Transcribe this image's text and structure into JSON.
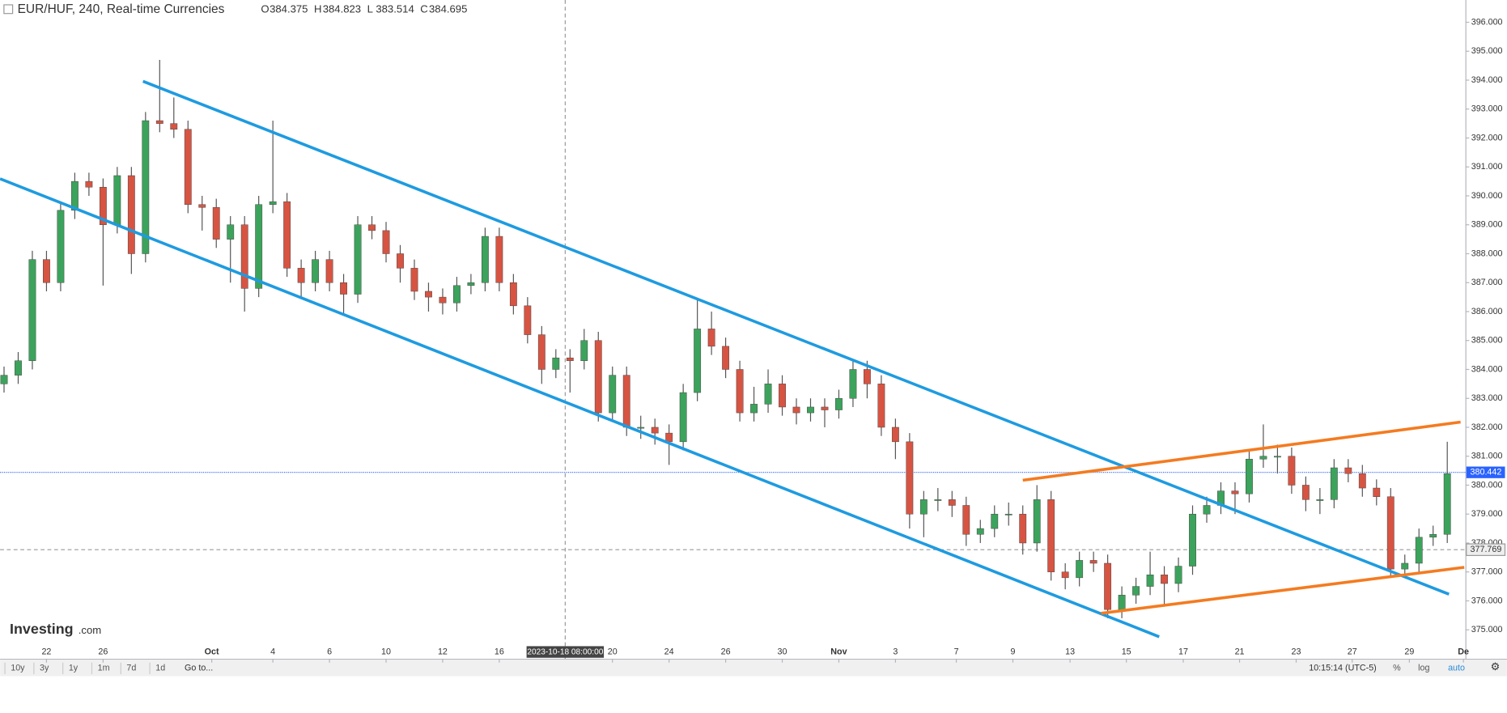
{
  "chart_data": {
    "type": "candlestick",
    "title": "EUR/HUF, 240, Real-time Currencies",
    "ohlc_header": {
      "labels": [
        "O",
        "H",
        "L",
        "C"
      ],
      "values": [
        384.375,
        384.823,
        383.514,
        384.695
      ]
    },
    "x": [
      -1.5,
      -1,
      -0.5,
      0,
      0.5,
      1,
      1.5,
      2,
      2.5,
      3,
      3.5,
      4,
      4.5,
      5,
      5.5,
      6,
      6.5,
      7,
      7.5,
      8,
      8.5,
      9,
      9.5,
      10,
      10.5,
      11,
      11.5,
      12,
      12.5,
      13,
      13.5,
      14,
      14.5,
      15,
      15.5,
      16,
      16.5,
      17,
      17.5,
      18,
      18.5,
      19,
      19.5,
      20,
      20.5,
      21,
      21.5,
      22,
      22.5,
      23,
      23.5,
      24,
      24.5,
      25,
      25.5,
      26,
      26.5,
      27,
      27.5,
      28,
      28.5,
      29,
      29.5,
      30,
      30.5,
      31,
      31.5,
      32,
      32.5,
      33,
      33.5,
      34,
      34.5,
      35,
      35.5,
      36,
      36.5,
      37,
      37.5,
      38,
      38.5,
      39,
      39.5,
      40,
      40.5,
      41,
      41.5,
      42,
      42.5,
      43,
      43.5,
      44,
      44.5,
      45,
      45.5,
      46,
      46.5,
      47,
      47.5,
      48,
      48.5,
      49,
      49.5
    ],
    "open": [
      383.5,
      383.8,
      384.3,
      387.8,
      387.0,
      389.5,
      390.5,
      390.3,
      389.0,
      390.7,
      388.0,
      392.6,
      392.5,
      392.3,
      389.7,
      389.6,
      388.5,
      389.0,
      386.8,
      389.7,
      389.8,
      387.5,
      387.0,
      387.8,
      387.0,
      386.6,
      389.0,
      388.8,
      388.0,
      387.5,
      386.7,
      386.5,
      386.3,
      386.9,
      387.0,
      388.6,
      387.0,
      386.2,
      385.2,
      384.0,
      384.4,
      384.3,
      385.0,
      382.5,
      383.8,
      382.0,
      382.0,
      381.8,
      381.5,
      383.2,
      385.4,
      384.8,
      384.0,
      382.5,
      382.8,
      383.5,
      382.7,
      382.5,
      382.7,
      382.6,
      383.0,
      384.0,
      383.5,
      382.0,
      381.5,
      379.0,
      379.5,
      379.5,
      379.3,
      378.3,
      378.5,
      379.0,
      379.0,
      378.0,
      379.5,
      377.0,
      376.8,
      377.4,
      377.3,
      375.7,
      376.2,
      376.5,
      376.9,
      376.6,
      377.2,
      379.0,
      379.3,
      379.8,
      379.7,
      380.9,
      381.0,
      381.0,
      380.0,
      379.5,
      379.5,
      380.6,
      380.4,
      379.9,
      379.6,
      377.1,
      377.3,
      378.2,
      378.3
    ],
    "high": [
      384.1,
      384.6,
      388.1,
      388.1,
      389.8,
      390.8,
      390.8,
      390.6,
      391.0,
      391.0,
      392.9,
      394.7,
      393.4,
      392.6,
      390.0,
      389.9,
      389.3,
      389.3,
      390.0,
      392.6,
      390.1,
      387.8,
      388.1,
      388.1,
      387.3,
      389.3,
      389.3,
      389.1,
      388.3,
      387.8,
      387.0,
      386.8,
      387.2,
      387.3,
      388.9,
      388.9,
      387.3,
      386.5,
      385.5,
      384.7,
      384.7,
      385.4,
      385.3,
      384.1,
      384.1,
      382.4,
      382.3,
      382.1,
      383.5,
      386.4,
      386.0,
      385.1,
      384.3,
      383.4,
      384.0,
      383.8,
      383.0,
      383.0,
      383.0,
      383.3,
      384.3,
      384.3,
      383.8,
      382.3,
      381.8,
      379.8,
      379.9,
      379.8,
      379.6,
      378.8,
      379.3,
      379.4,
      379.3,
      380.0,
      379.8,
      377.3,
      377.7,
      377.7,
      377.6,
      376.5,
      376.8,
      377.7,
      377.2,
      377.5,
      379.3,
      379.6,
      380.1,
      380.1,
      381.2,
      382.1,
      381.4,
      381.3,
      380.3,
      379.9,
      380.9,
      380.9,
      380.7,
      380.2,
      379.9,
      377.6,
      378.5,
      378.6,
      381.5
    ],
    "low": [
      383.2,
      383.5,
      384.0,
      386.7,
      386.7,
      389.2,
      390.0,
      386.9,
      388.7,
      387.3,
      387.7,
      392.2,
      392.0,
      389.4,
      388.8,
      388.2,
      387.0,
      386.0,
      386.5,
      389.4,
      387.2,
      386.5,
      386.7,
      386.7,
      385.9,
      386.3,
      388.5,
      387.7,
      387.0,
      386.4,
      386.0,
      385.9,
      386.0,
      386.6,
      386.7,
      386.7,
      385.9,
      384.9,
      383.5,
      383.7,
      383.2,
      384.0,
      382.2,
      382.2,
      381.7,
      381.6,
      381.4,
      380.7,
      381.2,
      382.9,
      384.5,
      383.7,
      382.2,
      382.2,
      382.5,
      382.4,
      382.1,
      382.2,
      382.0,
      382.3,
      382.7,
      383.0,
      381.7,
      380.9,
      378.5,
      378.2,
      379.1,
      378.9,
      377.9,
      378.0,
      378.2,
      378.6,
      377.6,
      377.7,
      376.7,
      376.4,
      376.5,
      377.0,
      375.4,
      375.4,
      375.9,
      376.2,
      375.8,
      376.3,
      376.9,
      378.7,
      379.0,
      379.0,
      379.4,
      380.6,
      380.4,
      379.7,
      379.1,
      379.0,
      379.2,
      380.1,
      379.6,
      379.3,
      376.8,
      376.8,
      377.0,
      377.9,
      378.0
    ],
    "close": [
      383.8,
      384.3,
      387.8,
      387.0,
      389.5,
      390.5,
      390.3,
      389.0,
      390.7,
      388.0,
      392.6,
      392.5,
      392.3,
      389.7,
      389.6,
      388.5,
      389.0,
      386.8,
      389.7,
      389.8,
      387.5,
      387.0,
      387.8,
      387.0,
      386.6,
      389.0,
      388.8,
      388.0,
      387.5,
      386.7,
      386.5,
      386.3,
      386.9,
      387.0,
      388.6,
      387.0,
      386.2,
      385.2,
      384.0,
      384.4,
      384.3,
      385.0,
      382.5,
      383.8,
      382.0,
      382.0,
      381.8,
      381.5,
      383.2,
      385.4,
      384.8,
      384.0,
      382.5,
      382.8,
      383.5,
      382.7,
      382.5,
      382.7,
      382.6,
      383.0,
      384.0,
      383.5,
      382.0,
      381.5,
      379.0,
      379.5,
      379.5,
      379.3,
      378.3,
      378.5,
      379.0,
      379.0,
      378.0,
      379.5,
      377.0,
      376.8,
      377.4,
      377.3,
      375.7,
      376.2,
      376.5,
      376.9,
      376.6,
      377.2,
      379.0,
      379.3,
      379.8,
      379.7,
      380.9,
      381.0,
      381.0,
      380.0,
      379.5,
      379.5,
      380.6,
      380.4,
      379.9,
      379.6,
      377.1,
      377.3,
      378.2,
      378.3,
      380.4
    ],
    "up_color": "#3ca35c",
    "down_color": "#d75442",
    "xlim": [
      -1.64,
      50.14
    ],
    "xticks": [
      {
        "value": 0,
        "label": "22"
      },
      {
        "value": 2,
        "label": "26"
      },
      {
        "value": 5.84,
        "label": "Oct"
      },
      {
        "value": 8,
        "label": "4"
      },
      {
        "value": 10,
        "label": "6"
      },
      {
        "value": 12,
        "label": "10"
      },
      {
        "value": 14,
        "label": "12"
      },
      {
        "value": 16,
        "label": "16"
      },
      {
        "value": 20,
        "label": "20"
      },
      {
        "value": 22,
        "label": "24"
      },
      {
        "value": 24,
        "label": "26"
      },
      {
        "value": 26,
        "label": "30"
      },
      {
        "value": 28,
        "label": "Nov"
      },
      {
        "value": 30,
        "label": "3"
      },
      {
        "value": 32.15,
        "label": "7"
      },
      {
        "value": 34.15,
        "label": "9"
      },
      {
        "value": 36.17,
        "label": "13"
      },
      {
        "value": 38.16,
        "label": "15"
      },
      {
        "value": 40.17,
        "label": "17"
      },
      {
        "value": 42.16,
        "label": "21"
      },
      {
        "value": 44.16,
        "label": "23"
      },
      {
        "value": 46.14,
        "label": "27"
      },
      {
        "value": 48.16,
        "label": "29"
      },
      {
        "value": 50.07,
        "label": "De"
      }
    ],
    "ylim": [
      374.0,
      396.77
    ],
    "yticks": [
      {
        "value": 375,
        "label": "375.000"
      },
      {
        "value": 376,
        "label": "376.000"
      },
      {
        "value": 377,
        "label": "377.000"
      },
      {
        "value": 378,
        "label": "378.000"
      },
      {
        "value": 379,
        "label": "379.000"
      },
      {
        "value": 380,
        "label": "380.000"
      },
      {
        "value": 381,
        "label": "381.000"
      },
      {
        "value": 382,
        "label": "382.000"
      },
      {
        "value": 383,
        "label": "383.000"
      },
      {
        "value": 384,
        "label": "384.000"
      },
      {
        "value": 385,
        "label": "385.000"
      },
      {
        "value": 386,
        "label": "386.000"
      },
      {
        "value": 387,
        "label": "387.000"
      },
      {
        "value": 388,
        "label": "388.000"
      },
      {
        "value": 389,
        "label": "389.000"
      },
      {
        "value": 390,
        "label": "390.000"
      },
      {
        "value": 391,
        "label": "391.000"
      },
      {
        "value": 392,
        "label": "392.000"
      },
      {
        "value": 393,
        "label": "393.000"
      },
      {
        "value": 394,
        "label": "394.000"
      },
      {
        "value": 395,
        "label": "395.000"
      },
      {
        "value": 396,
        "label": "396.000"
      }
    ],
    "grid": false,
    "crosshair": {
      "x": {
        "value": 18.33,
        "label": "2023-10-18 08:00:00"
      },
      "y": 377.769
    },
    "last_price": 380.442,
    "last_price_color": "#2962ff",
    "trendlines": [
      {
        "color": "#1e9be0",
        "x": [
          3.41,
          49.56
        ],
        "y": [
          393.96,
          376.23
        ]
      },
      {
        "color": "#1e9be0",
        "x": [
          -1.64,
          39.32
        ],
        "y": [
          390.59,
          374.76
        ]
      },
      {
        "color": "#f47b20",
        "x": [
          34.5,
          49.97
        ],
        "y": [
          380.17,
          382.18
        ]
      },
      {
        "color": "#f47b20",
        "x": [
          37.27,
          50.1
        ],
        "y": [
          375.57,
          377.16
        ]
      }
    ]
  },
  "logo": {
    "brand": "Investing",
    "suffix": ".com"
  },
  "toolbar": {
    "ranges": [
      "10y",
      "3y",
      "1y",
      "1m",
      "7d",
      "1d"
    ],
    "goto": "Go to...",
    "time": "10:15:14 (UTC-5)",
    "options": [
      "%",
      "log",
      "auto"
    ]
  }
}
